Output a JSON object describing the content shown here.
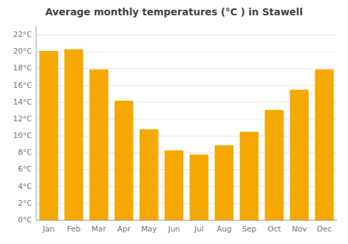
{
  "chart_data": {
    "type": "bar",
    "title": "Average monthly temperatures (°C ) in Stawell",
    "categories": [
      "Jan",
      "Feb",
      "Mar",
      "Apr",
      "May",
      "Jun",
      "Jul",
      "Aug",
      "Sep",
      "Oct",
      "Nov",
      "Dec"
    ],
    "values": [
      20.1,
      20.3,
      17.9,
      14.2,
      10.8,
      8.3,
      7.8,
      8.9,
      10.5,
      13.1,
      15.5,
      17.9
    ],
    "color": "#F5A800",
    "ylim": [
      0,
      23
    ],
    "yticks": [
      {
        "value": 0,
        "label": "0°C"
      },
      {
        "value": 2,
        "label": "2°C"
      },
      {
        "value": 4,
        "label": "4°C"
      },
      {
        "value": 6,
        "label": "6°C"
      },
      {
        "value": 8,
        "label": "8°C"
      },
      {
        "value": 10,
        "label": "10°C"
      },
      {
        "value": 12,
        "label": "12°C"
      },
      {
        "value": 14,
        "label": "14°C"
      },
      {
        "value": 16,
        "label": "16°C"
      },
      {
        "value": 18,
        "label": "18°C"
      },
      {
        "value": 20,
        "label": "20°C"
      },
      {
        "value": 22,
        "label": "22°C"
      }
    ],
    "grid": true
  }
}
